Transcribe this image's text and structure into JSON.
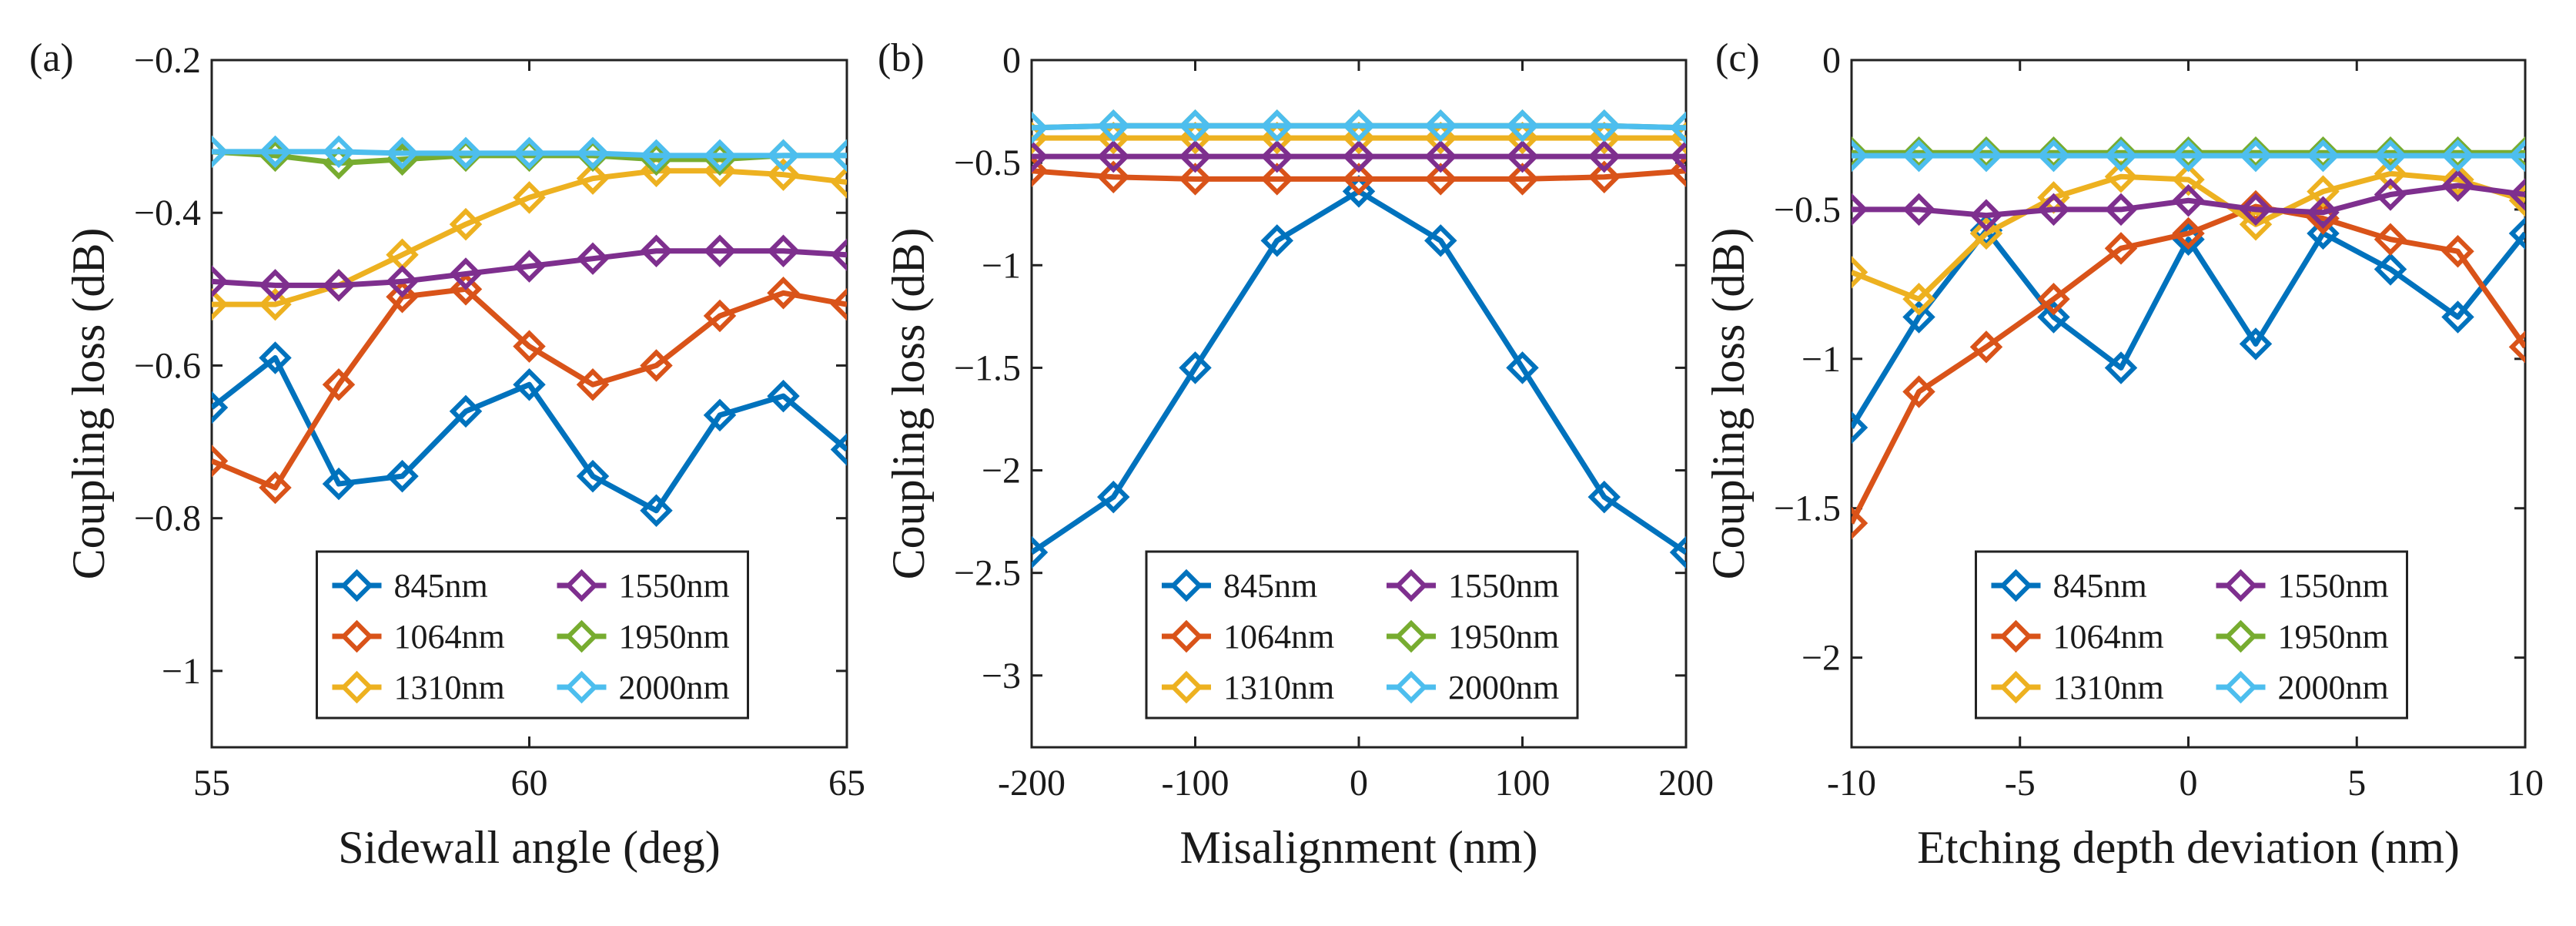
{
  "chart_data": [
    {
      "type": "line",
      "panel_label": "(a)",
      "xlabel": "Sidewall angle (deg)",
      "ylabel": "Coupling loss (dB)",
      "xlim": [
        55,
        65
      ],
      "ylim": [
        -1.1,
        -0.2
      ],
      "xticks": [
        55,
        60,
        65
      ],
      "xtick_labels": [
        "55",
        "60",
        "65"
      ],
      "yticks": [
        -1,
        -0.8,
        -0.6,
        -0.4,
        -0.2
      ],
      "ytick_labels": [
        "−1",
        "−0.8",
        "−0.6",
        "−0.4",
        "−0.2"
      ],
      "x": [
        55,
        56,
        57,
        58,
        59,
        60,
        61,
        62,
        63,
        64,
        65
      ],
      "series": [
        {
          "name": "845nm",
          "color": "#0072BD",
          "values": [
            -0.655,
            -0.59,
            -0.755,
            -0.745,
            -0.66,
            -0.625,
            -0.745,
            -0.79,
            -0.665,
            -0.64,
            -0.71
          ]
        },
        {
          "name": "1064nm",
          "color": "#D95319",
          "values": [
            -0.725,
            -0.76,
            -0.625,
            -0.51,
            -0.5,
            -0.575,
            -0.625,
            -0.6,
            -0.535,
            -0.505,
            -0.52
          ]
        },
        {
          "name": "1310nm",
          "color": "#EDB120",
          "values": [
            -0.52,
            -0.52,
            -0.495,
            -0.455,
            -0.415,
            -0.38,
            -0.355,
            -0.345,
            -0.345,
            -0.35,
            -0.36
          ]
        },
        {
          "name": "1550nm",
          "color": "#7E2F8E",
          "values": [
            -0.49,
            -0.495,
            -0.495,
            -0.49,
            -0.48,
            -0.47,
            -0.46,
            -0.45,
            -0.45,
            -0.45,
            -0.455
          ]
        },
        {
          "name": "1950nm",
          "color": "#77AC30",
          "values": [
            -0.32,
            -0.325,
            -0.335,
            -0.33,
            -0.325,
            -0.325,
            -0.325,
            -0.33,
            -0.33,
            -0.325,
            -0.325
          ]
        },
        {
          "name": "2000nm",
          "color": "#4DBEEE",
          "values": [
            -0.32,
            -0.32,
            -0.32,
            -0.322,
            -0.322,
            -0.322,
            -0.322,
            -0.325,
            -0.325,
            -0.325,
            -0.325
          ]
        }
      ],
      "legend": {
        "placement": "bottom-center",
        "columns": 2
      }
    },
    {
      "type": "line",
      "panel_label": "(b)",
      "xlabel": "Misalignment (nm)",
      "ylabel": "Coupling loss (dB)",
      "xlim": [
        -200,
        200
      ],
      "ylim": [
        -3.35,
        0
      ],
      "xticks": [
        -200,
        -100,
        0,
        100,
        200
      ],
      "xtick_labels": [
        "-200",
        "-100",
        "0",
        "100",
        "200"
      ],
      "yticks": [
        -3,
        -2.5,
        -2,
        -1.5,
        -1,
        -0.5,
        0
      ],
      "ytick_labels": [
        "−3",
        "−2.5",
        "−2",
        "−1.5",
        "−1",
        "−0.5",
        "0"
      ],
      "x": [
        -200,
        -150,
        -100,
        -50,
        0,
        50,
        100,
        150,
        200
      ],
      "series": [
        {
          "name": "845nm",
          "color": "#0072BD",
          "values": [
            -2.4,
            -2.13,
            -1.5,
            -0.88,
            -0.64,
            -0.88,
            -1.5,
            -2.13,
            -2.4
          ]
        },
        {
          "name": "1064nm",
          "color": "#D95319",
          "values": [
            -0.54,
            -0.57,
            -0.58,
            -0.58,
            -0.58,
            -0.58,
            -0.58,
            -0.57,
            -0.54
          ]
        },
        {
          "name": "1310nm",
          "color": "#EDB120",
          "values": [
            -0.38,
            -0.38,
            -0.38,
            -0.38,
            -0.38,
            -0.38,
            -0.38,
            -0.38,
            -0.38
          ]
        },
        {
          "name": "1550nm",
          "color": "#7E2F8E",
          "values": [
            -0.47,
            -0.47,
            -0.47,
            -0.47,
            -0.47,
            -0.47,
            -0.47,
            -0.47,
            -0.47
          ]
        },
        {
          "name": "1950nm",
          "color": "#77AC30",
          "values": [
            -0.33,
            -0.32,
            -0.32,
            -0.32,
            -0.32,
            -0.32,
            -0.32,
            -0.32,
            -0.33
          ]
        },
        {
          "name": "2000nm",
          "color": "#4DBEEE",
          "values": [
            -0.33,
            -0.32,
            -0.32,
            -0.32,
            -0.32,
            -0.32,
            -0.32,
            -0.32,
            -0.33
          ]
        }
      ],
      "legend": {
        "placement": "bottom-center",
        "columns": 2
      }
    },
    {
      "type": "line",
      "panel_label": "(c)",
      "xlabel": "Etching depth deviation (nm)",
      "ylabel": "Coupling loss (dB)",
      "xlim": [
        -10,
        10
      ],
      "ylim": [
        -2.3,
        0
      ],
      "xticks": [
        -10,
        -5,
        0,
        5,
        10
      ],
      "xtick_labels": [
        "-10",
        "-5",
        "0",
        "5",
        "10"
      ],
      "yticks": [
        -2,
        -1.5,
        -1,
        -0.5,
        0
      ],
      "ytick_labels": [
        "−2",
        "−1.5",
        "−1",
        "−0.5",
        "0"
      ],
      "x": [
        -10,
        -8,
        -6,
        -4,
        -2,
        0,
        2,
        4,
        6,
        8,
        10
      ],
      "series": [
        {
          "name": "845nm",
          "color": "#0072BD",
          "values": [
            -1.23,
            -0.86,
            -0.57,
            -0.86,
            -1.03,
            -0.6,
            -0.95,
            -0.58,
            -0.7,
            -0.86,
            -0.58
          ]
        },
        {
          "name": "1064nm",
          "color": "#D95319",
          "values": [
            -1.55,
            -1.11,
            -0.96,
            -0.8,
            -0.63,
            -0.58,
            -0.49,
            -0.53,
            -0.6,
            -0.64,
            -0.96
          ]
        },
        {
          "name": "1310nm",
          "color": "#EDB120",
          "values": [
            -0.71,
            -0.8,
            -0.58,
            -0.46,
            -0.39,
            -0.4,
            -0.55,
            -0.44,
            -0.38,
            -0.4,
            -0.47
          ]
        },
        {
          "name": "1550nm",
          "color": "#7E2F8E",
          "values": [
            -0.5,
            -0.5,
            -0.52,
            -0.5,
            -0.5,
            -0.47,
            -0.5,
            -0.51,
            -0.45,
            -0.42,
            -0.45
          ]
        },
        {
          "name": "1950nm",
          "color": "#77AC30",
          "values": [
            -0.31,
            -0.31,
            -0.31,
            -0.31,
            -0.31,
            -0.31,
            -0.31,
            -0.31,
            -0.31,
            -0.31,
            -0.31
          ]
        },
        {
          "name": "2000nm",
          "color": "#4DBEEE",
          "values": [
            -0.32,
            -0.32,
            -0.32,
            -0.32,
            -0.32,
            -0.32,
            -0.32,
            -0.32,
            -0.32,
            -0.32,
            -0.32
          ]
        }
      ],
      "legend": {
        "placement": "bottom-center",
        "columns": 2
      }
    }
  ]
}
